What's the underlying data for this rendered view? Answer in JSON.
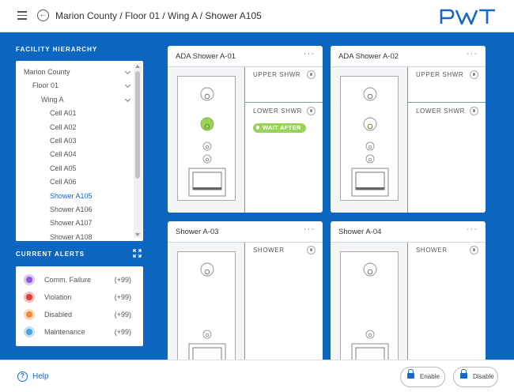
{
  "header": {
    "breadcrumb": "Marion County / Floor 01 / Wing A / Shower A105",
    "logo_text": "PWT",
    "menu_icon": "hamburger-icon",
    "back_icon": "back-arrow-icon"
  },
  "sidebar": {
    "hierarchy_title": "FACILITY HIERARCHY",
    "tree": [
      {
        "label": "Marion County",
        "level": 0,
        "chevron": true,
        "selected": false
      },
      {
        "label": "Floor 01",
        "level": 1,
        "chevron": true,
        "selected": false
      },
      {
        "label": "Wing A",
        "level": 2,
        "chevron": true,
        "selected": false
      },
      {
        "label": "Cell A01",
        "level": 3,
        "chevron": false,
        "selected": false
      },
      {
        "label": "Cell A02",
        "level": 3,
        "chevron": false,
        "selected": false
      },
      {
        "label": "Cell A03",
        "level": 3,
        "chevron": false,
        "selected": false
      },
      {
        "label": "Cell A04",
        "level": 3,
        "chevron": false,
        "selected": false
      },
      {
        "label": "Cell A05",
        "level": 3,
        "chevron": false,
        "selected": false
      },
      {
        "label": "Cell A06",
        "level": 3,
        "chevron": false,
        "selected": false
      },
      {
        "label": "Shower A105",
        "level": 3,
        "chevron": false,
        "selected": true
      },
      {
        "label": "Shower A106",
        "level": 3,
        "chevron": false,
        "selected": false
      },
      {
        "label": "Shower A107",
        "level": 3,
        "chevron": false,
        "selected": false
      },
      {
        "label": "Shower A108",
        "level": 3,
        "chevron": false,
        "selected": false
      }
    ],
    "alerts_title": "CURRENT ALERTS",
    "alerts": [
      {
        "label": "Comm. Failure",
        "count": "(+99)",
        "color": "#8e5bd6",
        "icon": "comm-failure-icon"
      },
      {
        "label": "Violation",
        "count": "(+99)",
        "color": "#e23b3b",
        "icon": "violation-icon"
      },
      {
        "label": "Disabled",
        "count": "(+99)",
        "color": "#ef8b34",
        "icon": "disabled-lock-icon"
      },
      {
        "label": "Maintenance",
        "count": "(+99)",
        "color": "#4aa3df",
        "icon": "maintenance-wrench-icon"
      }
    ]
  },
  "cards": [
    {
      "title": "ADA Shower A-01",
      "valves": [
        {
          "label": "UPPER SHWR",
          "badge": ""
        },
        {
          "label": "LOWER SHWR",
          "badge": "WAIT AFTER"
        }
      ]
    },
    {
      "title": "ADA Shower A-02",
      "valves": [
        {
          "label": "UPPER SHWR",
          "badge": ""
        },
        {
          "label": "LOWER SHWR",
          "badge": ""
        }
      ]
    },
    {
      "title": "Shower A-03",
      "valves": [
        {
          "label": "SHOWER",
          "badge": ""
        }
      ]
    },
    {
      "title": "Shower A-04",
      "valves": [
        {
          "label": "SHOWER",
          "badge": ""
        }
      ]
    }
  ],
  "footer": {
    "help_label": "Help",
    "enable_label": "Enable",
    "disable_label": "Disable"
  },
  "colors": {
    "brand_blue": "#0b66bf",
    "active_green": "#9bd35a"
  }
}
